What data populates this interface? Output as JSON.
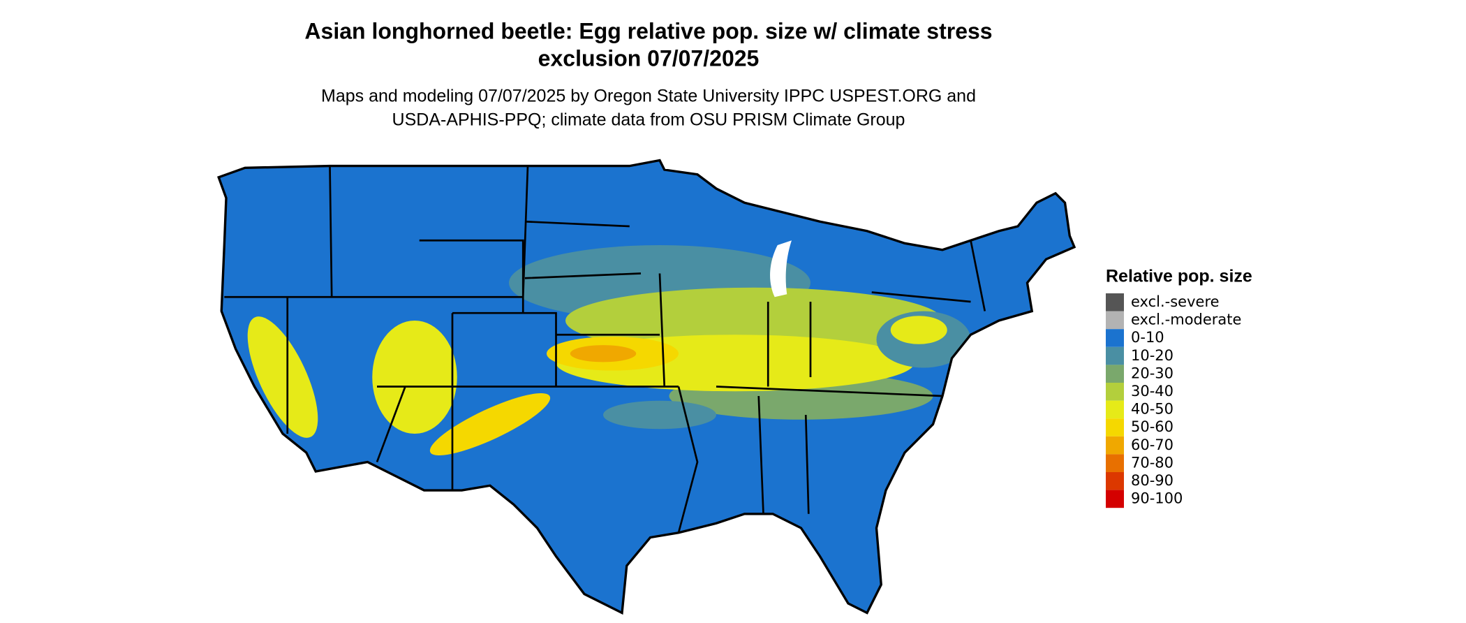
{
  "header": {
    "title_lines": [
      "Asian longhorned beetle: Egg relative pop. size w/ climate stress",
      "exclusion 07/07/2025"
    ],
    "subtitle_lines": [
      "Maps and modeling 07/07/2025 by Oregon State University IPPC USPEST.ORG and",
      "USDA-APHIS-PPQ; climate data from OSU PRISM Climate Group"
    ]
  },
  "legend": {
    "title": "Relative pop. size",
    "items": [
      {
        "label": "excl.-severe",
        "color": "#555555"
      },
      {
        "label": "excl.-moderate",
        "color": "#b3b3b3"
      },
      {
        "label": "0-10",
        "color": "#1b73cf"
      },
      {
        "label": "10-20",
        "color": "#4a8fa3"
      },
      {
        "label": "20-30",
        "color": "#7aa86c"
      },
      {
        "label": "30-40",
        "color": "#b3cf3c"
      },
      {
        "label": "40-50",
        "color": "#e6ea18"
      },
      {
        "label": "50-60",
        "color": "#f5d800"
      },
      {
        "label": "60-70",
        "color": "#f0a800"
      },
      {
        "label": "70-80",
        "color": "#e87000"
      },
      {
        "label": "80-90",
        "color": "#dc3800"
      },
      {
        "label": "90-100",
        "color": "#d40000"
      }
    ]
  }
}
